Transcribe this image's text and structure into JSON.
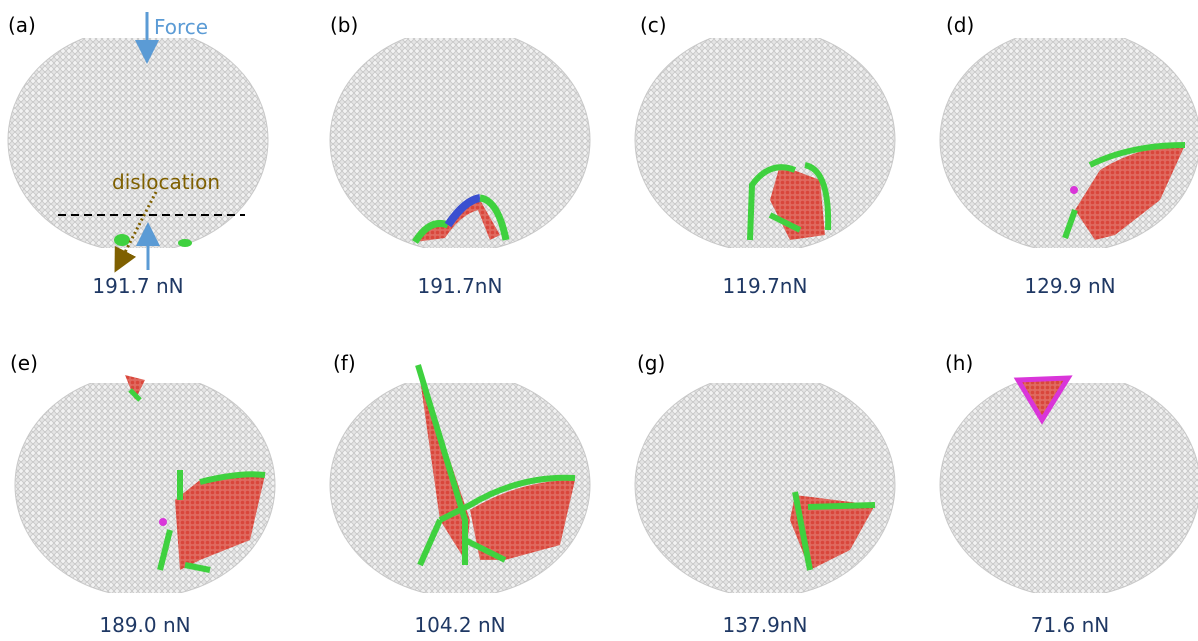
{
  "panels": [
    {
      "label": "(a)",
      "caption": "191.7 nN"
    },
    {
      "label": "(b)",
      "caption": "191.7nN"
    },
    {
      "label": "(c)",
      "caption": "119.7nN"
    },
    {
      "label": "(d)",
      "caption": "129.9 nN"
    },
    {
      "label": "(e)",
      "caption": "189.0 nN"
    },
    {
      "label": "(f)",
      "caption": "104.2 nN"
    },
    {
      "label": "(g)",
      "caption": "137.9nN"
    },
    {
      "label": "(h)",
      "caption": "71.6 nN"
    }
  ],
  "annotations": {
    "force": "Force",
    "dislocation": "dislocation"
  }
}
